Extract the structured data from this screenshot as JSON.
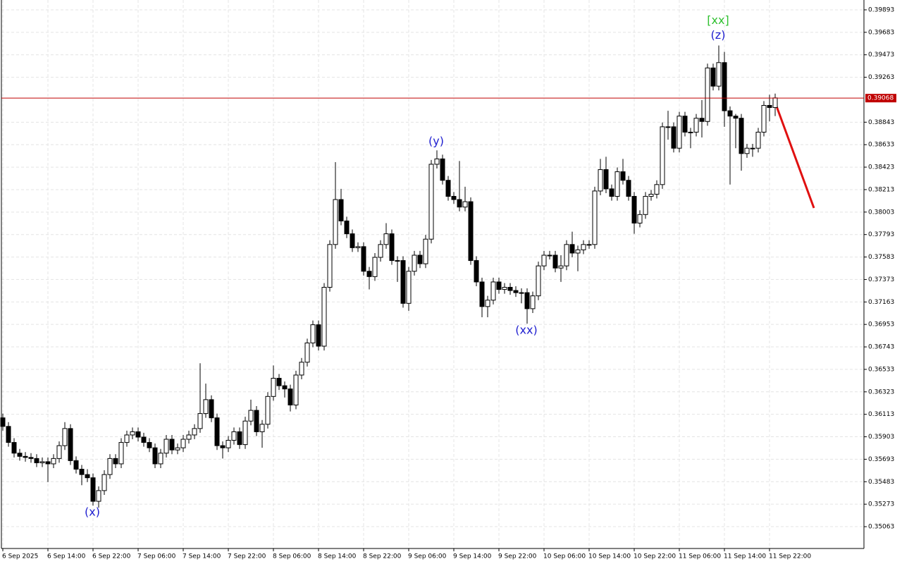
{
  "chart_data": {
    "type": "candlestick",
    "categories": [
      "6 Sep 2025",
      null,
      null,
      null,
      null,
      null,
      null,
      null,
      "6 Sep 14:00",
      null,
      null,
      null,
      null,
      null,
      null,
      null,
      "6 Sep 22:00",
      null,
      null,
      null,
      null,
      null,
      null,
      null,
      "7 Sep 06:00",
      null,
      null,
      null,
      null,
      null,
      null,
      null,
      "7 Sep 14:00",
      null,
      null,
      null,
      null,
      null,
      null,
      null,
      "7 Sep 22:00",
      null,
      null,
      null,
      null,
      null,
      null,
      null,
      "8 Sep 06:00",
      null,
      null,
      null,
      null,
      null,
      null,
      null,
      "8 Sep 14:00",
      null,
      null,
      null,
      null,
      null,
      null,
      null,
      "8 Sep 22:00",
      null,
      null,
      null,
      null,
      null,
      null,
      null,
      "9 Sep 06:00",
      null,
      null,
      null,
      null,
      null,
      null,
      null,
      "9 Sep 14:00",
      null,
      null,
      null,
      null,
      null,
      null,
      null,
      "9 Sep 22:00",
      null,
      null,
      null,
      null,
      null,
      null,
      null,
      "10 Sep 06:00",
      null,
      null,
      null,
      null,
      null,
      null,
      null,
      "10 Sep 14:00",
      null,
      null,
      null,
      null,
      null,
      null,
      null,
      "10 Sep 22:00",
      null,
      null,
      null,
      null,
      null,
      null,
      null,
      "11 Sep 06:00",
      null,
      null,
      null,
      null,
      null,
      null,
      null,
      "11 Sep 14:00",
      null,
      null,
      null,
      null,
      null,
      null,
      null,
      "11 Sep 22:00",
      null
    ],
    "open": [
      0.3608,
      0.36,
      0.3585,
      0.3575,
      0.3572,
      0.3571,
      0.357,
      0.3566,
      0.3567,
      0.3565,
      0.357,
      0.3582,
      0.3598,
      0.3568,
      0.356,
      0.3555,
      0.3552,
      0.353,
      0.354,
      0.3555,
      0.357,
      0.3565,
      0.3585,
      0.3592,
      0.3595,
      0.359,
      0.3585,
      0.358,
      0.3565,
      0.3575,
      0.3588,
      0.3578,
      0.358,
      0.3588,
      0.3592,
      0.3598,
      0.3612,
      0.3625,
      0.3608,
      0.3582,
      0.358,
      0.3587,
      0.3595,
      0.3583,
      0.3605,
      0.3615,
      0.3595,
      0.3602,
      0.3628,
      0.3645,
      0.3638,
      0.3635,
      0.362,
      0.3648,
      0.366,
      0.3678,
      0.3695,
      0.3675,
      0.373,
      0.377,
      0.3812,
      0.3792,
      0.378,
      0.3767,
      0.3768,
      0.3745,
      0.374,
      0.3758,
      0.377,
      0.378,
      0.3755,
      0.3755,
      0.3715,
      0.3745,
      0.376,
      0.3752,
      0.3775,
      0.3845,
      0.385,
      0.383,
      0.3815,
      0.3812,
      0.3805,
      0.381,
      0.3755,
      0.3735,
      0.3712,
      0.3718,
      0.3735,
      0.3728,
      0.373,
      0.3727,
      0.3725,
      0.3725,
      0.371,
      0.3722,
      0.375,
      0.376,
      0.376,
      0.3748,
      0.375,
      0.377,
      0.3762,
      0.3765,
      0.377,
      0.377,
      0.382,
      0.384,
      0.3822,
      0.3815,
      0.3838,
      0.383,
      0.3815,
      0.379,
      0.3798,
      0.3815,
      0.3817,
      0.3826,
      0.388,
      0.388,
      0.386,
      0.389,
      0.3875,
      0.3875,
      0.3888,
      0.3885,
      0.3935,
      0.3918,
      0.394,
      0.3895,
      0.389,
      0.3888,
      0.3855,
      0.386,
      0.386,
      0.3875,
      0.39,
      0.3898
    ],
    "high": [
      0.3612,
      0.3604,
      0.3589,
      0.3579,
      0.3576,
      0.3575,
      0.3574,
      0.3571,
      0.3571,
      0.3574,
      0.3586,
      0.3604,
      0.3602,
      0.3572,
      0.3564,
      0.356,
      0.3556,
      0.3544,
      0.3559,
      0.3574,
      0.3574,
      0.3589,
      0.3596,
      0.3599,
      0.3599,
      0.3594,
      0.3589,
      0.3584,
      0.3579,
      0.3592,
      0.3592,
      0.3584,
      0.3592,
      0.3596,
      0.3602,
      0.3659,
      0.364,
      0.3629,
      0.3612,
      0.3586,
      0.3591,
      0.3599,
      0.3599,
      0.3609,
      0.3625,
      0.3619,
      0.3606,
      0.3632,
      0.3657,
      0.3649,
      0.3642,
      0.3639,
      0.3652,
      0.3664,
      0.3682,
      0.3699,
      0.3699,
      0.3734,
      0.3774,
      0.3847,
      0.3822,
      0.3796,
      0.3784,
      0.3772,
      0.3772,
      0.3749,
      0.3762,
      0.3774,
      0.379,
      0.3784,
      0.3759,
      0.3759,
      0.3749,
      0.3764,
      0.3764,
      0.3779,
      0.3849,
      0.3858,
      0.3854,
      0.3834,
      0.3819,
      0.3848,
      0.3824,
      0.3814,
      0.3759,
      0.3739,
      0.3722,
      0.3739,
      0.3739,
      0.3734,
      0.3734,
      0.3731,
      0.3729,
      0.3729,
      0.3726,
      0.3754,
      0.3764,
      0.3764,
      0.3764,
      0.376,
      0.3774,
      0.3782,
      0.3769,
      0.3774,
      0.3774,
      0.3824,
      0.385,
      0.3852,
      0.3826,
      0.3842,
      0.385,
      0.3834,
      0.3819,
      0.3802,
      0.3819,
      0.3821,
      0.383,
      0.3884,
      0.3895,
      0.3884,
      0.3894,
      0.3894,
      0.3879,
      0.3892,
      0.3905,
      0.3939,
      0.3939,
      0.3956,
      0.395,
      0.3899,
      0.3892,
      0.3892,
      0.3864,
      0.3864,
      0.3879,
      0.3904,
      0.391,
      0.3911
    ],
    "low": [
      0.3596,
      0.3581,
      0.3571,
      0.3568,
      0.3567,
      0.3566,
      0.3562,
      0.3562,
      0.3548,
      0.3561,
      0.3566,
      0.3578,
      0.3564,
      0.3556,
      0.3545,
      0.3548,
      0.3526,
      0.3524,
      0.3536,
      0.3551,
      0.3561,
      0.3561,
      0.3581,
      0.3588,
      0.3586,
      0.3581,
      0.3576,
      0.3561,
      0.3561,
      0.3571,
      0.3574,
      0.3574,
      0.3576,
      0.3584,
      0.3588,
      0.3594,
      0.3608,
      0.3604,
      0.3578,
      0.357,
      0.3576,
      0.3583,
      0.3579,
      0.3579,
      0.3601,
      0.3591,
      0.358,
      0.3598,
      0.3624,
      0.3634,
      0.3627,
      0.3614,
      0.3616,
      0.3644,
      0.3656,
      0.3674,
      0.3671,
      0.3671,
      0.3726,
      0.3766,
      0.3788,
      0.3776,
      0.3763,
      0.3763,
      0.3741,
      0.3728,
      0.3736,
      0.3754,
      0.3766,
      0.3751,
      0.3735,
      0.3711,
      0.3708,
      0.3741,
      0.3748,
      0.3748,
      0.3771,
      0.3841,
      0.3826,
      0.3811,
      0.3808,
      0.3801,
      0.3801,
      0.3751,
      0.3731,
      0.3702,
      0.3702,
      0.3714,
      0.3724,
      0.3724,
      0.3723,
      0.3721,
      0.3715,
      0.3696,
      0.3706,
      0.3718,
      0.3746,
      0.3756,
      0.3744,
      0.3735,
      0.3746,
      0.3758,
      0.3745,
      0.3761,
      0.3766,
      0.3766,
      0.3816,
      0.3818,
      0.3811,
      0.3811,
      0.3826,
      0.3811,
      0.378,
      0.3786,
      0.3794,
      0.3811,
      0.3813,
      0.3822,
      0.3868,
      0.3856,
      0.3856,
      0.3871,
      0.386,
      0.3871,
      0.387,
      0.3881,
      0.3914,
      0.3914,
      0.388,
      0.3826,
      0.386,
      0.3839,
      0.3851,
      0.3852,
      0.3856,
      0.3871,
      0.3885,
      0.389
    ],
    "close": [
      0.36,
      0.3585,
      0.3575,
      0.3572,
      0.3571,
      0.357,
      0.3566,
      0.3567,
      0.3565,
      0.357,
      0.3582,
      0.3598,
      0.3568,
      0.356,
      0.3555,
      0.3552,
      0.353,
      0.354,
      0.3555,
      0.357,
      0.3565,
      0.3585,
      0.3592,
      0.3595,
      0.359,
      0.3585,
      0.358,
      0.3565,
      0.3575,
      0.3588,
      0.3578,
      0.358,
      0.3588,
      0.3592,
      0.3598,
      0.3612,
      0.3625,
      0.3608,
      0.3582,
      0.358,
      0.3587,
      0.3595,
      0.3583,
      0.3605,
      0.3615,
      0.3595,
      0.3602,
      0.3628,
      0.3645,
      0.3638,
      0.3635,
      0.362,
      0.3648,
      0.366,
      0.3678,
      0.3695,
      0.3675,
      0.373,
      0.377,
      0.3812,
      0.3792,
      0.378,
      0.3767,
      0.3768,
      0.3745,
      0.374,
      0.3758,
      0.377,
      0.378,
      0.3755,
      0.3755,
      0.3715,
      0.3745,
      0.376,
      0.3752,
      0.3775,
      0.3845,
      0.385,
      0.383,
      0.3815,
      0.3812,
      0.3805,
      0.381,
      0.3755,
      0.3735,
      0.3712,
      0.3718,
      0.3735,
      0.3728,
      0.373,
      0.3727,
      0.3725,
      0.3725,
      0.371,
      0.3722,
      0.375,
      0.376,
      0.376,
      0.3748,
      0.375,
      0.377,
      0.3762,
      0.3765,
      0.377,
      0.377,
      0.382,
      0.384,
      0.3822,
      0.3815,
      0.3838,
      0.383,
      0.3815,
      0.379,
      0.3798,
      0.3815,
      0.3817,
      0.3826,
      0.388,
      0.388,
      0.386,
      0.389,
      0.3875,
      0.3875,
      0.3888,
      0.3885,
      0.3935,
      0.3918,
      0.394,
      0.3895,
      0.389,
      0.3888,
      0.3855,
      0.386,
      0.386,
      0.3875,
      0.39,
      0.3898,
      0.3907
    ],
    "up_color": "#ffffff",
    "down_color": "#000000",
    "ylim": [
      0.34859,
      0.39985
    ],
    "yticks": [
      0.39893,
      0.39683,
      0.39473,
      0.39263,
      0.38843,
      0.38633,
      0.38423,
      0.38213,
      0.38003,
      0.37793,
      0.37583,
      0.37373,
      0.37163,
      0.36953,
      0.36743,
      0.36533,
      0.36323,
      0.36113,
      0.35903,
      0.35693,
      0.35483,
      0.35273,
      0.35063
    ],
    "grid": true,
    "current_price": 0.39068,
    "current_price_color": "#c00000",
    "annotations": [
      {
        "text": "(x)",
        "color": "#2020d0"
      },
      {
        "text": "(y)",
        "color": "#2020d0"
      },
      {
        "text": "(xx)",
        "color": "#2020d0"
      },
      {
        "text": "(z)",
        "color": "#2020d0"
      },
      {
        "text": "[xx]",
        "color": "#30c030"
      }
    ]
  }
}
